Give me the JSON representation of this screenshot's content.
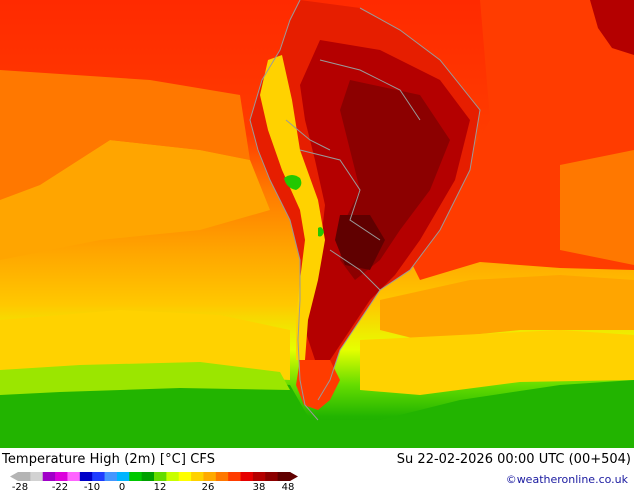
{
  "map": {
    "title": "Temperature High (2m) [°C] CFS",
    "datetime": "Su 22-02-2026 00:00 UTC (00+504)",
    "credit": "©weatheronline.co.uk",
    "colors": {
      "ocean_cold": "#22b400",
      "ocean_mid": "#ffa500",
      "ocean_warm": "#ff3c00",
      "land_hot": "#a00000",
      "land_very_hot": "#7a0000",
      "andes": "#ffd200",
      "border": "#9a9a9a"
    }
  },
  "legend": {
    "tick_labels": [
      "-28",
      "-22",
      "-10",
      "0",
      "12",
      "26",
      "38",
      "48"
    ],
    "colors": [
      "#b4b4b4",
      "#d2d2d2",
      "#a000c8",
      "#dc00dc",
      "#ff64ff",
      "#0000c8",
      "#1e3cff",
      "#4696ff",
      "#00b4ff",
      "#00c800",
      "#00a000",
      "#64dc00",
      "#c8ff00",
      "#ffff00",
      "#ffd200",
      "#ffaa00",
      "#ff7800",
      "#ff3c00",
      "#e60000",
      "#b40000",
      "#8c0000",
      "#600000"
    ]
  }
}
